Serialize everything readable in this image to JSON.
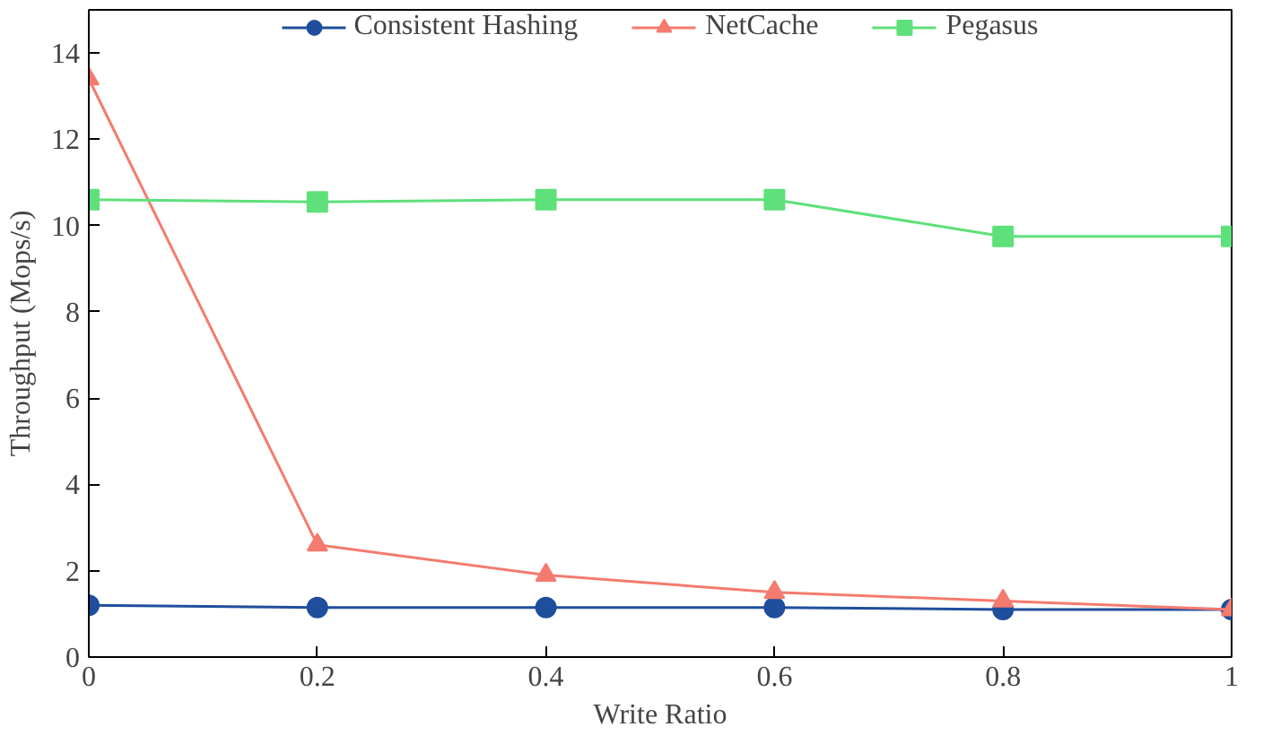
{
  "chart_data": {
    "type": "line",
    "xlabel": "Write Ratio",
    "ylabel": "Throughput (Mops/s)",
    "x": [
      0,
      0.2,
      0.4,
      0.6,
      0.8,
      1
    ],
    "series": [
      {
        "name": "Consistent Hashing",
        "color": "#1f4e9c",
        "marker": "circle",
        "values": [
          1.2,
          1.15,
          1.15,
          1.15,
          1.1,
          1.1
        ]
      },
      {
        "name": "NetCache",
        "color": "#f47b6e",
        "marker": "triangle",
        "values": [
          13.4,
          2.6,
          1.9,
          1.5,
          1.3,
          1.1
        ]
      },
      {
        "name": "Pegasus",
        "color": "#5ee07a",
        "marker": "square",
        "values": [
          10.6,
          10.55,
          10.6,
          10.6,
          9.75,
          9.75
        ]
      }
    ],
    "xlim": [
      0,
      1
    ],
    "xticks": [
      0,
      0.2,
      0.4,
      0.6,
      0.8,
      1
    ],
    "ylim": [
      0,
      15
    ],
    "yticks": [
      0,
      2,
      4,
      6,
      8,
      10,
      12,
      14
    ],
    "grid": false,
    "legend": "top",
    "line_style": "solid"
  }
}
